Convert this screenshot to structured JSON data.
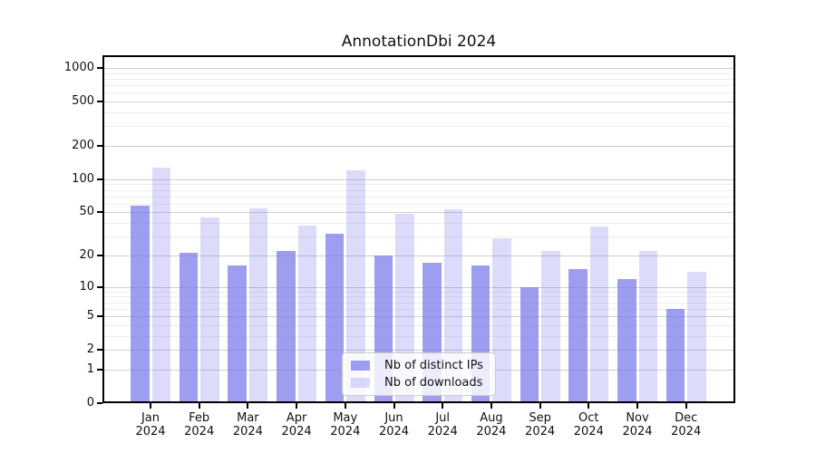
{
  "chart_data": {
    "type": "bar",
    "title": "AnnotationDbi 2024",
    "categories": [
      "Jan 2024",
      "Feb 2024",
      "Mar 2024",
      "Apr 2024",
      "May 2024",
      "Jun 2024",
      "Jul 2024",
      "Aug 2024",
      "Sep 2024",
      "Oct 2024",
      "Nov 2024",
      "Dec 2024"
    ],
    "series": [
      {
        "name": "Nb of distinct IPs",
        "color": "rgba(120,120,235,0.72)",
        "values": [
          58,
          21,
          16,
          22,
          32,
          20,
          17,
          16,
          10,
          15,
          12,
          6
        ]
      },
      {
        "name": "Nb of downloads",
        "color": "rgba(120,120,235,0.26)",
        "values": [
          127,
          45,
          54,
          38,
          120,
          49,
          53,
          29,
          22,
          37,
          22,
          14
        ]
      }
    ],
    "xlabel": "",
    "ylabel": "",
    "y_axis": {
      "scale": "log1p",
      "ticks": [
        0,
        1,
        2,
        5,
        10,
        20,
        50,
        100,
        200,
        500,
        1000
      ],
      "ylim": [
        0,
        1300
      ]
    },
    "grid": true,
    "legend": {
      "position": "lower-center"
    }
  }
}
